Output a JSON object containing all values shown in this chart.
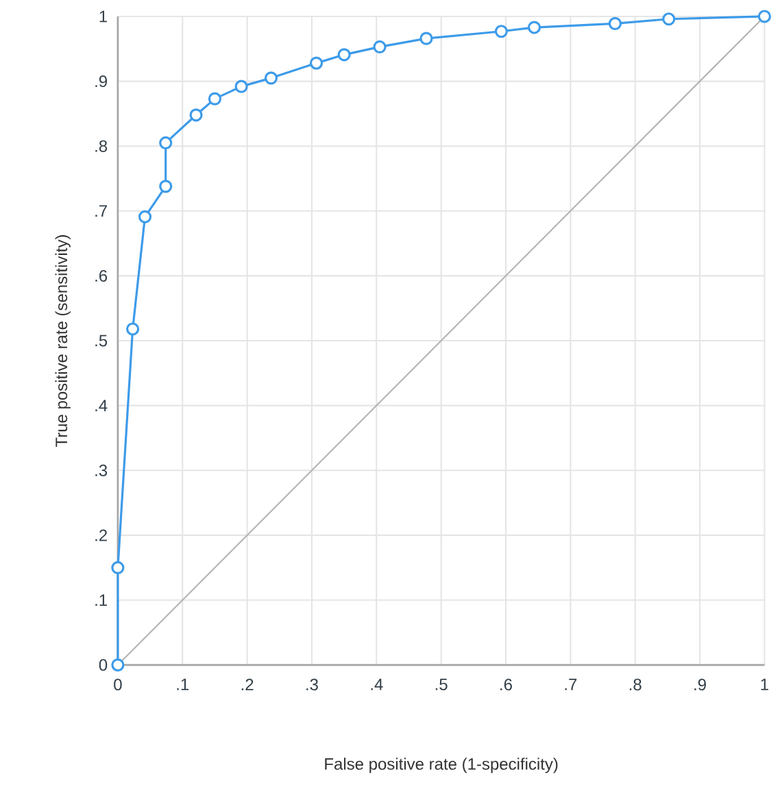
{
  "chart_data": {
    "type": "line",
    "xlabel": "False positive rate (1-specificity)",
    "ylabel": "True positive rate (sensitivity)",
    "xlim": [
      0,
      1
    ],
    "ylim": [
      0,
      1
    ],
    "xticks": [
      0,
      {
        "value": 0.1,
        "label": ".1"
      },
      {
        "value": 0.2,
        "label": ".2"
      },
      {
        "value": 0.3,
        "label": ".3"
      },
      {
        "value": 0.4,
        "label": ".4"
      },
      {
        "value": 0.5,
        "label": ".5"
      },
      {
        "value": 0.6,
        "label": ".6"
      },
      {
        "value": 0.7,
        "label": ".7"
      },
      {
        "value": 0.8,
        "label": ".8"
      },
      {
        "value": 0.9,
        "label": ".9"
      },
      1
    ],
    "yticks": [
      0,
      {
        "value": 0.1,
        "label": ".1"
      },
      {
        "value": 0.2,
        "label": ".2"
      },
      {
        "value": 0.3,
        "label": ".3"
      },
      {
        "value": 0.4,
        "label": ".4"
      },
      {
        "value": 0.5,
        "label": ".5"
      },
      {
        "value": 0.6,
        "label": ".6"
      },
      {
        "value": 0.7,
        "label": ".7"
      },
      {
        "value": 0.8,
        "label": ".8"
      },
      {
        "value": 0.9,
        "label": ".9"
      },
      1
    ],
    "grid": true,
    "series": [
      {
        "color": "#3d9be9",
        "marker": "circle",
        "x": [
          0,
          0,
          0.023,
          0.042,
          0.074,
          0.074,
          0.121,
          0.15,
          0.191,
          0.237,
          0.307,
          0.35,
          0.405,
          0.477,
          0.593,
          0.644,
          0.769,
          0.852,
          1
        ],
        "values": [
          0,
          0.15,
          0.518,
          0.691,
          0.738,
          0.805,
          0.848,
          0.873,
          0.892,
          0.905,
          0.928,
          0.941,
          0.953,
          0.966,
          0.977,
          0.983,
          0.989,
          0.996,
          1
        ]
      },
      {
        "color": "#b4b4b4",
        "marker": "none",
        "x": [
          0,
          1
        ],
        "values": [
          0,
          1
        ]
      }
    ]
  }
}
